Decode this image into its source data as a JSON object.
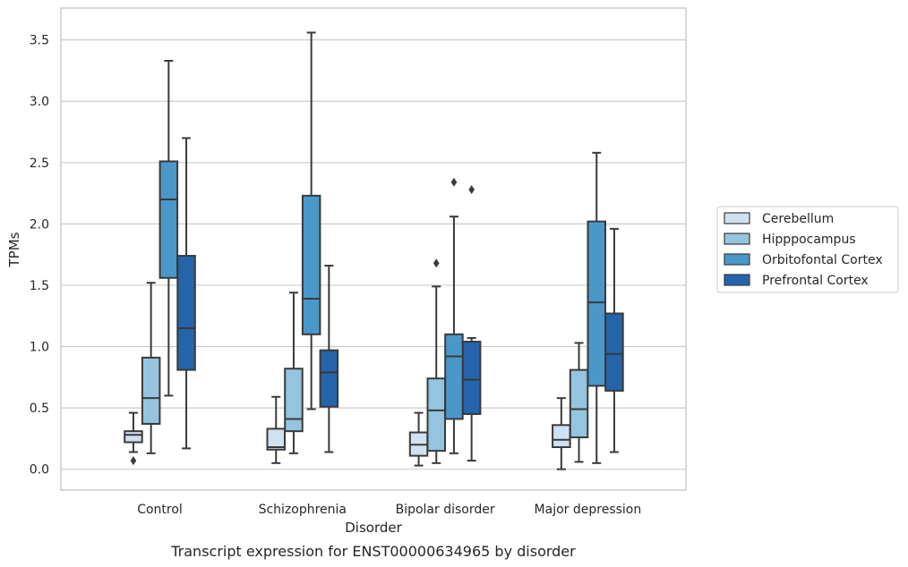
{
  "chart_data": {
    "type": "box",
    "title": "",
    "caption": "Transcript expression for ENST00000634965 by disorder",
    "xlabel": "Disorder",
    "ylabel": "TPMs",
    "ylim": [
      -0.17,
      3.76
    ],
    "yticks": [
      "0.0",
      "0.5",
      "1.0",
      "1.5",
      "2.0",
      "2.5",
      "3.0",
      "3.5"
    ],
    "ytick_values": [
      0,
      0.5,
      1.0,
      1.5,
      2.0,
      2.5,
      3.0,
      3.5
    ],
    "grid": "horizontal",
    "legend_position": "right",
    "categories": [
      "Control",
      "Schizophrenia",
      "Bipolar disorder",
      "Major depression"
    ],
    "series": [
      {
        "name": "Cerebellum",
        "color": "#d0e1f2",
        "boxes": [
          {
            "whisker_low": 0.14,
            "q1": 0.22,
            "median": 0.28,
            "q3": 0.31,
            "whisker_high": 0.46,
            "outliers": [
              0.07
            ]
          },
          {
            "whisker_low": 0.05,
            "q1": 0.16,
            "median": 0.18,
            "q3": 0.33,
            "whisker_high": 0.59,
            "outliers": []
          },
          {
            "whisker_low": 0.03,
            "q1": 0.11,
            "median": 0.2,
            "q3": 0.3,
            "whisker_high": 0.46,
            "outliers": []
          },
          {
            "whisker_low": 0.0,
            "q1": 0.18,
            "median": 0.24,
            "q3": 0.36,
            "whisker_high": 0.58,
            "outliers": []
          }
        ]
      },
      {
        "name": "Hipppocampus",
        "color": "#94c4df",
        "boxes": [
          {
            "whisker_low": 0.13,
            "q1": 0.37,
            "median": 0.58,
            "q3": 0.91,
            "whisker_high": 1.52,
            "outliers": []
          },
          {
            "whisker_low": 0.13,
            "q1": 0.31,
            "median": 0.41,
            "q3": 0.82,
            "whisker_high": 1.44,
            "outliers": []
          },
          {
            "whisker_low": 0.05,
            "q1": 0.15,
            "median": 0.48,
            "q3": 0.74,
            "whisker_high": 1.49,
            "outliers": [
              1.68
            ]
          },
          {
            "whisker_low": 0.06,
            "q1": 0.26,
            "median": 0.49,
            "q3": 0.81,
            "whisker_high": 1.03,
            "outliers": []
          }
        ]
      },
      {
        "name": "Orbitofontal Cortex",
        "color": "#4a98c9",
        "boxes": [
          {
            "whisker_low": 0.6,
            "q1": 1.56,
            "median": 2.2,
            "q3": 2.51,
            "whisker_high": 3.33,
            "outliers": []
          },
          {
            "whisker_low": 0.49,
            "q1": 1.1,
            "median": 1.39,
            "q3": 2.23,
            "whisker_high": 3.56,
            "outliers": []
          },
          {
            "whisker_low": 0.13,
            "q1": 0.41,
            "median": 0.92,
            "q3": 1.1,
            "whisker_high": 2.06,
            "outliers": [
              2.34
            ]
          },
          {
            "whisker_low": 0.05,
            "q1": 0.68,
            "median": 1.36,
            "q3": 2.02,
            "whisker_high": 2.58,
            "outliers": []
          }
        ]
      },
      {
        "name": "Prefrontal Cortex",
        "color": "#2464ab",
        "boxes": [
          {
            "whisker_low": 0.17,
            "q1": 0.81,
            "median": 1.15,
            "q3": 1.74,
            "whisker_high": 2.7,
            "outliers": []
          },
          {
            "whisker_low": 0.14,
            "q1": 0.51,
            "median": 0.79,
            "q3": 0.97,
            "whisker_high": 1.66,
            "outliers": []
          },
          {
            "whisker_low": 0.07,
            "q1": 0.45,
            "median": 0.73,
            "q3": 1.04,
            "whisker_high": 1.07,
            "outliers": [
              2.28
            ]
          },
          {
            "whisker_low": 0.14,
            "q1": 0.64,
            "median": 0.94,
            "q3": 1.27,
            "whisker_high": 1.96,
            "outliers": []
          }
        ]
      }
    ]
  }
}
